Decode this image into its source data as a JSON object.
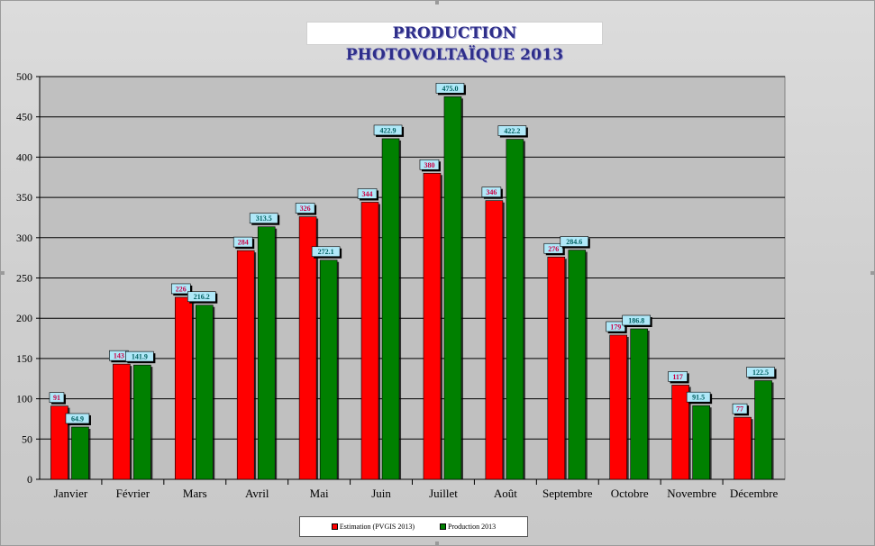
{
  "chart_data": {
    "type": "bar",
    "title": "PRODUCTION PHOTOVOLTAÏQUE 2013",
    "categories": [
      "Janvier",
      "Février",
      "Mars",
      "Avril",
      "Mai",
      "Juin",
      "Juillet",
      "Août",
      "Septembre",
      "Octobre",
      "Novembre",
      "Décembre"
    ],
    "series": [
      {
        "name": "Estimation (PVGIS 2013)",
        "color": "#ff0000",
        "label_color": "#cc0044",
        "values": [
          91,
          143,
          226,
          284,
          326,
          344,
          380,
          346,
          276,
          179,
          117,
          77
        ],
        "labels": [
          "91",
          "143",
          "226",
          "284",
          "326",
          "344",
          "380",
          "346",
          "276",
          "179",
          "117",
          "77"
        ]
      },
      {
        "name": "Production 2013",
        "color": "#008000",
        "label_color": "#006060",
        "values": [
          64.9,
          141.9,
          216.2,
          313.5,
          272.1,
          422.9,
          475.0,
          422.2,
          284.6,
          186.8,
          91.5,
          122.5
        ],
        "labels": [
          "64.9",
          "141.9",
          "216.2",
          "313.5",
          "272.1",
          "422.9",
          "475.0",
          "422.2",
          "284.6",
          "186.8",
          "91.5",
          "122.5"
        ]
      }
    ],
    "ylim": [
      0,
      500
    ],
    "yticks": [
      0,
      50,
      100,
      150,
      200,
      250,
      300,
      350,
      400,
      450,
      500
    ],
    "grid": true,
    "legend_position": "bottom",
    "colors": {
      "plot_bg": "#c0c0c0",
      "label_box": "#b0e8f8"
    }
  }
}
